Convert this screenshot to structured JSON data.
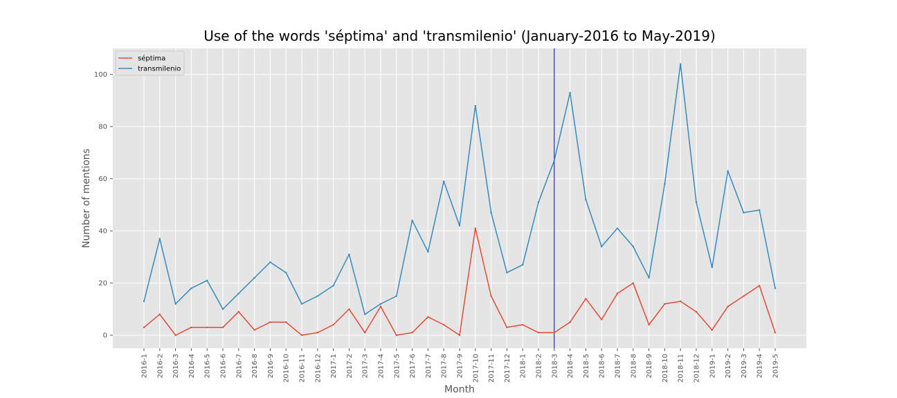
{
  "chart_data": {
    "type": "line",
    "title": "Use of the words 'séptima' and 'transmilenio' (January-2016 to May-2019)",
    "xlabel": "Month",
    "ylabel": "Number of mentions",
    "ylim": [
      -5,
      110
    ],
    "yticks": [
      0,
      20,
      40,
      60,
      80,
      100
    ],
    "grid": true,
    "legend_position": "top-left",
    "categories": [
      "2016-1",
      "2016-2",
      "2016-3",
      "2016-4",
      "2016-5",
      "2016-6",
      "2016-7",
      "2016-8",
      "2016-9",
      "2016-10",
      "2016-11",
      "2016-12",
      "2017-1",
      "2017-2",
      "2017-3",
      "2017-4",
      "2017-5",
      "2017-6",
      "2017-7",
      "2017-8",
      "2017-9",
      "2017-10",
      "2017-11",
      "2017-12",
      "2018-1",
      "2018-2",
      "2018-3",
      "2018-4",
      "2018-5",
      "2018-6",
      "2018-7",
      "2018-8",
      "2018-9",
      "2018-10",
      "2018-11",
      "2018-12",
      "2019-1",
      "2019-2",
      "2019-3",
      "2019-4",
      "2019-5"
    ],
    "series": [
      {
        "name": "séptima",
        "color": "#E24A33",
        "values": [
          3,
          8,
          0,
          3,
          3,
          3,
          9,
          2,
          5,
          5,
          0,
          1,
          4,
          10,
          1,
          11,
          0,
          1,
          7,
          4,
          0,
          41,
          15,
          3,
          4,
          1,
          1,
          5,
          14,
          6,
          16,
          20,
          4,
          12,
          13,
          9,
          2,
          11,
          15,
          19,
          1
        ]
      },
      {
        "name": "transmilenio",
        "color": "#348ABD",
        "values": [
          13,
          37,
          12,
          18,
          21,
          10,
          16,
          22,
          28,
          24,
          12,
          15,
          19,
          31,
          8,
          12,
          15,
          44,
          32,
          59,
          42,
          88,
          47,
          24,
          27,
          51,
          67,
          93,
          52,
          34,
          41,
          34,
          22,
          58,
          104,
          51,
          26,
          63,
          47,
          48,
          18
        ]
      }
    ],
    "vertical_line": {
      "category": "2018-3",
      "color": "#00008B"
    }
  }
}
